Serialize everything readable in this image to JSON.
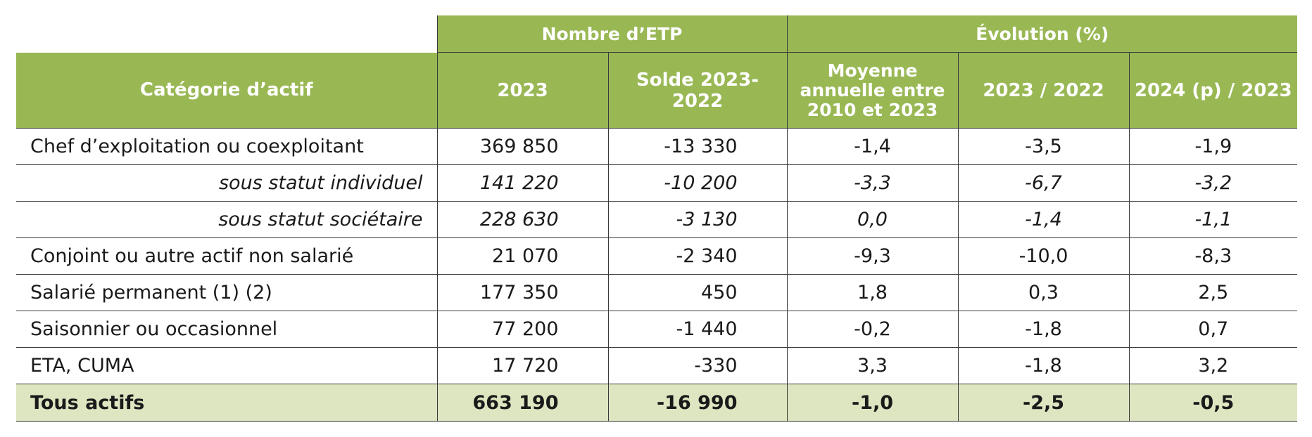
{
  "chart_data": {
    "type": "table",
    "group_headers": [
      "Nombre d’ETP",
      "Évolution (%)"
    ],
    "columns": [
      "Catégorie d’actif",
      "2023",
      "Solde 2023- 2022",
      "Moyenne annuelle entre 2010 et 2023",
      "2023 / 2022",
      "2024 (p) / 2023"
    ],
    "rows": [
      {
        "label": "Chef d’exploitation ou coexploitant",
        "values": [
          "369 850",
          "-13 330",
          "-1,4",
          "-3,5",
          "-1,9"
        ]
      },
      {
        "label": "sous statut individuel",
        "values": [
          "141 220",
          "-10 200",
          "-3,3",
          "-6,7",
          "-3,2"
        ]
      },
      {
        "label": "sous statut sociétaire",
        "values": [
          "228 630",
          "-3 130",
          "0,0",
          "-1,4",
          "-1,1"
        ]
      },
      {
        "label": "Conjoint ou autre actif non salarié",
        "values": [
          "21 070",
          "-2 340",
          "-9,3",
          "-10,0",
          "-8,3"
        ]
      },
      {
        "label": "Salarié permanent (1) (2)",
        "values": [
          "177 350",
          "450",
          "1,8",
          "0,3",
          "2,5"
        ]
      },
      {
        "label": "Saisonnier ou occasionnel",
        "values": [
          "77 200",
          "-1 440",
          "-0,2",
          "-1,8",
          "0,7"
        ]
      },
      {
        "label": "ETA, CUMA",
        "values": [
          "17 720",
          "-330",
          "3,3",
          "-1,8",
          "3,2"
        ]
      },
      {
        "label": "Tous actifs",
        "values": [
          "663 190",
          "-16 990",
          "-1,0",
          "-2,5",
          "-0,5"
        ]
      }
    ],
    "colors": {
      "header": "#99b854",
      "total_row": "#dde6c1"
    }
  }
}
